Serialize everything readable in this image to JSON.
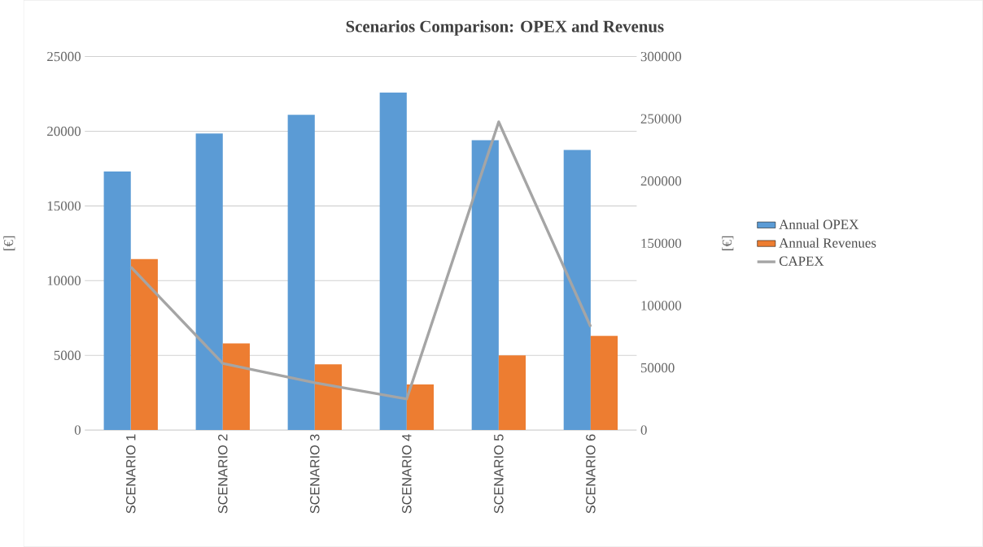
{
  "chart_data": {
    "type": "bar",
    "title": "Scenarios Comparison: OPEX and Revenus",
    "ylabel": "[€]",
    "y2label": "[€]",
    "categories": [
      "SCENARIO 1",
      "SCENARIO 2",
      "SCENARIO 3",
      "SCENARIO 4",
      "SCENARIO 5",
      "SCENARIO 6"
    ],
    "series": [
      {
        "name": "Annual OPEX",
        "color": "#5b9bd5",
        "values": [
          17300,
          19850,
          21100,
          22600,
          19400,
          18750
        ]
      },
      {
        "name": "Annual Revenues",
        "color": "#ed7d31",
        "values": [
          11450,
          5800,
          4400,
          3050,
          5000,
          6300
        ]
      },
      {
        "name": "CAPEX",
        "type": "line",
        "axis": "y2",
        "color": "#a5a5a5",
        "values": [
          131000,
          53500,
          38000,
          25000,
          247500,
          83000
        ]
      }
    ],
    "ylim": [
      0,
      25000
    ],
    "yticks": [
      0,
      5000,
      10000,
      15000,
      20000,
      25000
    ],
    "y2lim": [
      0,
      300000
    ],
    "y2ticks": [
      0,
      50000,
      100000,
      150000,
      200000,
      250000,
      300000
    ],
    "grid": "y",
    "legend": "right",
    "marker": "none",
    "line_style": "solid"
  }
}
